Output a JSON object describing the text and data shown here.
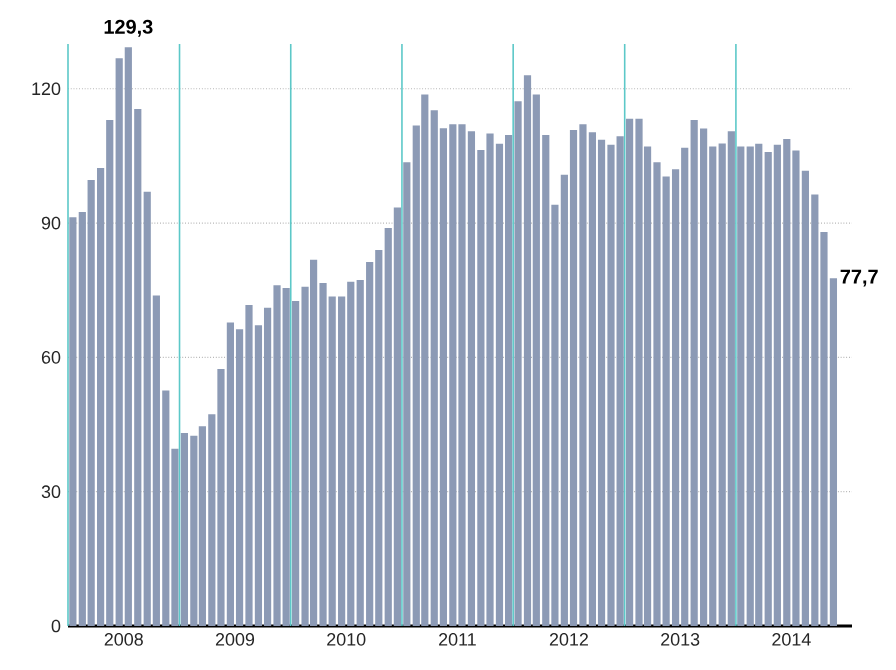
{
  "chart_data": {
    "type": "bar",
    "x": [
      "2008-01",
      "2008-02",
      "2008-03",
      "2008-04",
      "2008-05",
      "2008-06",
      "2008-07",
      "2008-08",
      "2008-09",
      "2008-10",
      "2008-11",
      "2008-12",
      "2009-01",
      "2009-02",
      "2009-03",
      "2009-04",
      "2009-05",
      "2009-06",
      "2009-07",
      "2009-08",
      "2009-09",
      "2009-10",
      "2009-11",
      "2009-12",
      "2010-01",
      "2010-02",
      "2010-03",
      "2010-04",
      "2010-05",
      "2010-06",
      "2010-07",
      "2010-08",
      "2010-09",
      "2010-10",
      "2010-11",
      "2010-12",
      "2011-01",
      "2011-02",
      "2011-03",
      "2011-04",
      "2011-05",
      "2011-06",
      "2011-07",
      "2011-08",
      "2011-09",
      "2011-10",
      "2011-11",
      "2011-12",
      "2012-01",
      "2012-02",
      "2012-03",
      "2012-04",
      "2012-05",
      "2012-06",
      "2012-07",
      "2012-08",
      "2012-09",
      "2012-10",
      "2012-11",
      "2012-12",
      "2013-01",
      "2013-02",
      "2013-03",
      "2013-04",
      "2013-05",
      "2013-06",
      "2013-07",
      "2013-08",
      "2013-09",
      "2013-10",
      "2013-11",
      "2013-12",
      "2014-01",
      "2014-02",
      "2014-03",
      "2014-04",
      "2014-05",
      "2014-06",
      "2014-07",
      "2014-08",
      "2014-09",
      "2014-10",
      "2014-11"
    ],
    "values": [
      91.3,
      92.5,
      99.6,
      102.3,
      113,
      126.8,
      129.3,
      115.5,
      97,
      73.8,
      52.6,
      39.6,
      43.1,
      42.5,
      44.6,
      47.3,
      57.4,
      67.8,
      66.3,
      71.7,
      67.2,
      71.1,
      76.1,
      75.5,
      72.6,
      75.8,
      81.8,
      76.6,
      73.6,
      73.6,
      76.9,
      77.3,
      81.3,
      84,
      88.9,
      93.5,
      103.6,
      111.8,
      118.7,
      115.2,
      111.2,
      112.1,
      112.1,
      110.5,
      106.3,
      110,
      107.7,
      109.7,
      117.2,
      123,
      118.7,
      109.7,
      94.1,
      100.8,
      110.8,
      112.1,
      110.3,
      108.6,
      107.5,
      109.4,
      113.3,
      113.3,
      107.1,
      103.6,
      100.4,
      102,
      106.8,
      113,
      111.1,
      107.1,
      107.8,
      110.5,
      107.1,
      107.1,
      107.7,
      105.9,
      107.5,
      108.8,
      106.2,
      101.7,
      96.4,
      88,
      77.7
    ],
    "color": "#8c9ab5",
    "xlim": [
      "2007-12-16",
      "2015-01-01"
    ],
    "xticks": [
      {
        "value": "2008-06-16",
        "label": "2008"
      },
      {
        "value": "2009-06-16",
        "label": "2009"
      },
      {
        "value": "2010-06-16",
        "label": "2010"
      },
      {
        "value": "2011-06-16",
        "label": "2011"
      },
      {
        "value": "2012-06-16",
        "label": "2012"
      },
      {
        "value": "2013-06-16",
        "label": "2013"
      },
      {
        "value": "2014-06-16",
        "label": "2014"
      }
    ],
    "ylim": [
      0,
      130
    ],
    "yticks": [
      0,
      30,
      60,
      90,
      120
    ],
    "grid": "y",
    "ref_lines": [
      {
        "axis": "x",
        "value": "2007-12-16",
        "color": "#5cc8c8"
      },
      {
        "axis": "x",
        "value": "2008-12-16",
        "color": "#5cc8c8"
      },
      {
        "axis": "x",
        "value": "2009-12-16",
        "color": "#5cc8c8"
      },
      {
        "axis": "x",
        "value": "2010-12-16",
        "color": "#5cc8c8"
      },
      {
        "axis": "x",
        "value": "2011-12-16",
        "color": "#5cc8c8"
      },
      {
        "axis": "x",
        "value": "2012-12-16",
        "color": "#5cc8c8"
      },
      {
        "axis": "x",
        "value": "2013-12-16",
        "color": "#5cc8c8"
      }
    ],
    "annotations": [
      {
        "text": "129,3",
        "x": "2008-07",
        "y": 129.3
      },
      {
        "text": "77,7",
        "x": "2014-11",
        "y": 77.7
      }
    ]
  }
}
